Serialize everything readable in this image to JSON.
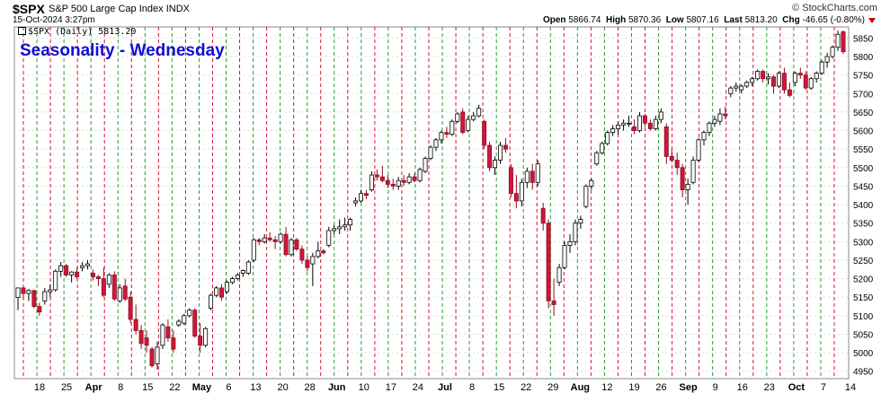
{
  "header": {
    "symbol": "$SPX",
    "name": "S&P 500 Large Cap Index",
    "exchange": "INDX",
    "datetime": "15-Oct-2024 3:27pm",
    "brand": "© StockCharts.com",
    "open_label": "Open",
    "open": "5866.74",
    "high_label": "High",
    "high": "5870.36",
    "low_label": "Low",
    "low": "5807.16",
    "last_label": "Last",
    "last": "5813.20",
    "chg_label": "Chg",
    "chg": "-46.65 (-0.80%)"
  },
  "legend": "$SPX (Daily) 5813.20",
  "colors": {
    "up": "#ffffff",
    "down": "#d4143c",
    "wed_up": "#2a9d2a",
    "wed_down": "#d4143c",
    "title": "#1010d0"
  },
  "chart_data": {
    "type": "candlestick",
    "title": "Seasonality - Wednesday",
    "ylim": [
      4930,
      5880
    ],
    "yticks": [
      4950,
      5000,
      5050,
      5100,
      5150,
      5200,
      5250,
      5300,
      5350,
      5400,
      5450,
      5500,
      5550,
      5600,
      5650,
      5700,
      5750,
      5800,
      5850
    ],
    "xlabels": [
      "18",
      "25",
      "Apr",
      "8",
      "15",
      "22",
      "May",
      "6",
      "13",
      "20",
      "28",
      "Jun",
      "10",
      "17",
      "24",
      "Jul",
      "8",
      "15",
      "22",
      "29",
      "Aug",
      "12",
      "19",
      "26",
      "Sep",
      "9",
      "16",
      "23",
      "Oct",
      "7",
      "14"
    ],
    "ohlc": [
      [
        5149,
        5175,
        5115,
        5175
      ],
      [
        5175,
        5180,
        5145,
        5160
      ],
      [
        5160,
        5172,
        5140,
        5168
      ],
      [
        5168,
        5170,
        5120,
        5125
      ],
      [
        5125,
        5135,
        5100,
        5110
      ],
      [
        5140,
        5175,
        5130,
        5165
      ],
      [
        5165,
        5185,
        5150,
        5170
      ],
      [
        5170,
        5225,
        5165,
        5220
      ],
      [
        5220,
        5245,
        5205,
        5235
      ],
      [
        5235,
        5240,
        5205,
        5210
      ],
      [
        5210,
        5220,
        5190,
        5218
      ],
      [
        5218,
        5230,
        5200,
        5205
      ],
      [
        5230,
        5245,
        5220,
        5235
      ],
      [
        5235,
        5250,
        5225,
        5240
      ],
      [
        5215,
        5225,
        5195,
        5205
      ],
      [
        5205,
        5210,
        5180,
        5200
      ],
      [
        5200,
        5230,
        5150,
        5155
      ],
      [
        5185,
        5215,
        5175,
        5210
      ],
      [
        5210,
        5220,
        5140,
        5145
      ],
      [
        5140,
        5185,
        5135,
        5175
      ],
      [
        5180,
        5200,
        5140,
        5145
      ],
      [
        5150,
        5165,
        5080,
        5090
      ],
      [
        5090,
        5130,
        5050,
        5060
      ],
      [
        5060,
        5075,
        5010,
        5025
      ],
      [
        5040,
        5060,
        5000,
        5020
      ],
      [
        5010,
        5015,
        4960,
        4965
      ],
      [
        4970,
        5030,
        4955,
        5015
      ],
      [
        5020,
        5080,
        5010,
        5075
      ],
      [
        5070,
        5090,
        5030,
        5040
      ],
      [
        5040,
        5060,
        5000,
        5010
      ],
      [
        5075,
        5090,
        5070,
        5085
      ],
      [
        5080,
        5105,
        5075,
        5100
      ],
      [
        5100,
        5120,
        5095,
        5115
      ],
      [
        5115,
        5120,
        5040,
        5045
      ],
      [
        5045,
        5080,
        5000,
        5020
      ],
      [
        5020,
        5070,
        5015,
        5065
      ],
      [
        5120,
        5160,
        5115,
        5155
      ],
      [
        5155,
        5180,
        5150,
        5175
      ],
      [
        5175,
        5185,
        5140,
        5150
      ],
      [
        5165,
        5195,
        5160,
        5190
      ],
      [
        5190,
        5205,
        5185,
        5200
      ],
      [
        5200,
        5215,
        5195,
        5210
      ],
      [
        5215,
        5225,
        5205,
        5222
      ],
      [
        5215,
        5250,
        5210,
        5245
      ],
      [
        5250,
        5310,
        5245,
        5305
      ],
      [
        5305,
        5310,
        5290,
        5300
      ],
      [
        5300,
        5320,
        5295,
        5310
      ],
      [
        5310,
        5325,
        5300,
        5305
      ],
      [
        5305,
        5315,
        5280,
        5300
      ],
      [
        5300,
        5325,
        5295,
        5320
      ],
      [
        5320,
        5340,
        5260,
        5265
      ],
      [
        5265,
        5310,
        5260,
        5305
      ],
      [
        5305,
        5310,
        5275,
        5280
      ],
      [
        5280,
        5290,
        5240,
        5250
      ],
      [
        5250,
        5260,
        5220,
        5230
      ],
      [
        5240,
        5270,
        5180,
        5260
      ],
      [
        5260,
        5300,
        5255,
        5275
      ],
      [
        5275,
        5280,
        5265,
        5270
      ],
      [
        5290,
        5340,
        5285,
        5330
      ],
      [
        5330,
        5345,
        5320,
        5335
      ],
      [
        5335,
        5360,
        5320,
        5340
      ],
      [
        5340,
        5365,
        5330,
        5345
      ],
      [
        5345,
        5365,
        5330,
        5360
      ],
      [
        5405,
        5420,
        5395,
        5410
      ],
      [
        5410,
        5440,
        5405,
        5430
      ],
      [
        5430,
        5440,
        5415,
        5425
      ],
      [
        5440,
        5490,
        5435,
        5480
      ],
      [
        5480,
        5495,
        5465,
        5475
      ],
      [
        5475,
        5505,
        5460,
        5465
      ],
      [
        5465,
        5480,
        5445,
        5455
      ],
      [
        5455,
        5470,
        5440,
        5450
      ],
      [
        5450,
        5475,
        5440,
        5465
      ],
      [
        5465,
        5480,
        5450,
        5460
      ],
      [
        5460,
        5485,
        5455,
        5475
      ],
      [
        5475,
        5485,
        5460,
        5465
      ],
      [
        5465,
        5500,
        5460,
        5495
      ],
      [
        5490,
        5530,
        5485,
        5525
      ],
      [
        5525,
        5560,
        5520,
        5555
      ],
      [
        5555,
        5580,
        5545,
        5575
      ],
      [
        5575,
        5600,
        5565,
        5595
      ],
      [
        5595,
        5610,
        5580,
        5590
      ],
      [
        5590,
        5630,
        5585,
        5625
      ],
      [
        5625,
        5650,
        5620,
        5645
      ],
      [
        5650,
        5660,
        5590,
        5595
      ],
      [
        5600,
        5640,
        5595,
        5630
      ],
      [
        5630,
        5650,
        5625,
        5640
      ],
      [
        5640,
        5670,
        5635,
        5660
      ],
      [
        5625,
        5630,
        5550,
        5560
      ],
      [
        5560,
        5570,
        5490,
        5500
      ],
      [
        5500,
        5530,
        5480,
        5520
      ],
      [
        5520,
        5570,
        5510,
        5560
      ],
      [
        5560,
        5580,
        5540,
        5550
      ],
      [
        5500,
        5510,
        5420,
        5430
      ],
      [
        5430,
        5480,
        5390,
        5410
      ],
      [
        5410,
        5470,
        5395,
        5460
      ],
      [
        5460,
        5500,
        5445,
        5490
      ],
      [
        5490,
        5510,
        5440,
        5460
      ],
      [
        5460,
        5520,
        5450,
        5510
      ],
      [
        5390,
        5405,
        5330,
        5350
      ],
      [
        5350,
        5360,
        5120,
        5140
      ],
      [
        5140,
        5200,
        5100,
        5130
      ],
      [
        5190,
        5240,
        5180,
        5230
      ],
      [
        5230,
        5300,
        5225,
        5290
      ],
      [
        5290,
        5320,
        5270,
        5300
      ],
      [
        5300,
        5360,
        5290,
        5350
      ],
      [
        5350,
        5370,
        5335,
        5360
      ],
      [
        5395,
        5455,
        5390,
        5450
      ],
      [
        5450,
        5470,
        5440,
        5465
      ],
      [
        5510,
        5545,
        5505,
        5540
      ],
      [
        5540,
        5570,
        5535,
        5565
      ],
      [
        5565,
        5600,
        5560,
        5595
      ],
      [
        5595,
        5615,
        5585,
        5605
      ],
      [
        5605,
        5625,
        5590,
        5615
      ],
      [
        5615,
        5630,
        5600,
        5620
      ],
      [
        5620,
        5640,
        5610,
        5620
      ],
      [
        5610,
        5630,
        5590,
        5600
      ],
      [
        5600,
        5650,
        5595,
        5640
      ],
      [
        5640,
        5645,
        5610,
        5620
      ],
      [
        5620,
        5630,
        5600,
        5605
      ],
      [
        5605,
        5640,
        5600,
        5630
      ],
      [
        5630,
        5660,
        5620,
        5650
      ],
      [
        5610,
        5620,
        5510,
        5530
      ],
      [
        5530,
        5550,
        5515,
        5520
      ],
      [
        5520,
        5540,
        5480,
        5500
      ],
      [
        5500,
        5510,
        5420,
        5440
      ],
      [
        5440,
        5470,
        5400,
        5455
      ],
      [
        5460,
        5530,
        5455,
        5520
      ],
      [
        5520,
        5580,
        5515,
        5575
      ],
      [
        5575,
        5600,
        5560,
        5595
      ],
      [
        5595,
        5625,
        5585,
        5620
      ],
      [
        5620,
        5640,
        5610,
        5630
      ],
      [
        5625,
        5660,
        5615,
        5645
      ],
      [
        5645,
        5665,
        5630,
        5640
      ],
      [
        5700,
        5720,
        5690,
        5715
      ],
      [
        5715,
        5730,
        5705,
        5720
      ],
      [
        5710,
        5725,
        5700,
        5720
      ],
      [
        5720,
        5735,
        5715,
        5730
      ],
      [
        5730,
        5745,
        5720,
        5740
      ],
      [
        5740,
        5765,
        5735,
        5760
      ],
      [
        5760,
        5765,
        5730,
        5740
      ],
      [
        5740,
        5755,
        5725,
        5745
      ],
      [
        5745,
        5750,
        5700,
        5720
      ],
      [
        5720,
        5760,
        5715,
        5755
      ],
      [
        5755,
        5770,
        5700,
        5710
      ],
      [
        5710,
        5730,
        5690,
        5695
      ],
      [
        5730,
        5760,
        5720,
        5755
      ],
      [
        5755,
        5770,
        5740,
        5750
      ],
      [
        5750,
        5760,
        5710,
        5715
      ],
      [
        5715,
        5745,
        5710,
        5740
      ],
      [
        5740,
        5760,
        5730,
        5755
      ],
      [
        5755,
        5790,
        5750,
        5785
      ],
      [
        5785,
        5810,
        5770,
        5800
      ],
      [
        5800,
        5830,
        5795,
        5825
      ],
      [
        5825,
        5870,
        5815,
        5860
      ],
      [
        5866.74,
        5870.36,
        5807.16,
        5813.2
      ]
    ]
  }
}
